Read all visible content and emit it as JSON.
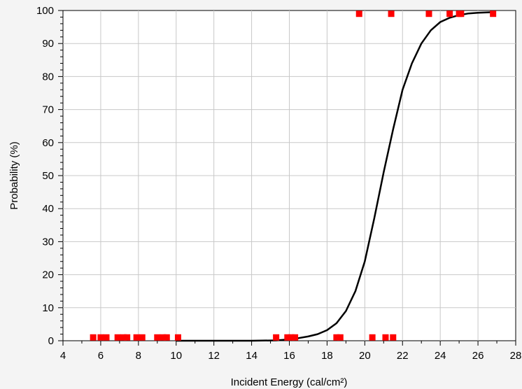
{
  "chart_data": {
    "type": "scatter",
    "title": "",
    "xlabel": "Incident Energy (cal/cm²)",
    "ylabel": "Probability (%)",
    "xlim": [
      4,
      28
    ],
    "ylim": [
      0,
      100
    ],
    "xticks": [
      4,
      6,
      8,
      10,
      12,
      14,
      16,
      18,
      20,
      22,
      24,
      26,
      28
    ],
    "yticks": [
      0,
      10,
      20,
      30,
      40,
      50,
      60,
      70,
      80,
      90,
      100
    ],
    "xtick_labels": [
      "4",
      "6",
      "8",
      "10",
      "12",
      "14",
      "16",
      "18",
      "20",
      "22",
      "24",
      "26",
      "28"
    ],
    "ytick_labels": [
      "0",
      "10",
      "20",
      "30",
      "40",
      "50",
      "60",
      "70",
      "80",
      "90",
      "100"
    ],
    "grid": true,
    "legend": "none",
    "series": [
      {
        "kind": "points",
        "color": "#ff0000",
        "marker": "square",
        "points": [
          [
            5.6,
            1
          ],
          [
            6.0,
            1
          ],
          [
            6.3,
            1
          ],
          [
            6.9,
            1
          ],
          [
            7.2,
            1
          ],
          [
            7.4,
            1
          ],
          [
            7.9,
            1
          ],
          [
            8.2,
            1
          ],
          [
            9.0,
            1
          ],
          [
            9.3,
            1
          ],
          [
            9.5,
            1
          ],
          [
            10.1,
            1
          ],
          [
            15.3,
            1
          ],
          [
            15.9,
            1
          ],
          [
            16.1,
            1
          ],
          [
            16.3,
            1
          ],
          [
            18.5,
            1
          ],
          [
            18.7,
            1
          ],
          [
            20.4,
            1
          ],
          [
            21.1,
            1
          ],
          [
            21.5,
            1
          ],
          [
            19.7,
            99
          ],
          [
            21.4,
            99
          ],
          [
            23.4,
            99
          ],
          [
            24.5,
            99
          ],
          [
            25.0,
            99
          ],
          [
            25.1,
            99
          ],
          [
            26.8,
            99
          ]
        ]
      },
      {
        "kind": "curve",
        "color": "#000000",
        "points": [
          [
            10.0,
            0
          ],
          [
            12,
            0
          ],
          [
            14,
            0
          ],
          [
            15.3,
            0.1
          ],
          [
            16,
            0.4
          ],
          [
            16.5,
            0.8
          ],
          [
            17,
            1.3
          ],
          [
            17.5,
            2.0
          ],
          [
            18,
            3.2
          ],
          [
            18.5,
            5.3
          ],
          [
            19,
            9
          ],
          [
            19.5,
            15
          ],
          [
            20,
            24
          ],
          [
            20.5,
            37
          ],
          [
            21,
            51
          ],
          [
            21.5,
            64
          ],
          [
            22,
            76
          ],
          [
            22.5,
            84
          ],
          [
            23,
            90
          ],
          [
            23.5,
            94
          ],
          [
            24,
            96.5
          ],
          [
            24.5,
            97.8
          ],
          [
            25,
            98.6
          ],
          [
            25.5,
            99.1
          ],
          [
            26,
            99.3
          ],
          [
            26.8,
            99.5
          ]
        ]
      }
    ]
  }
}
